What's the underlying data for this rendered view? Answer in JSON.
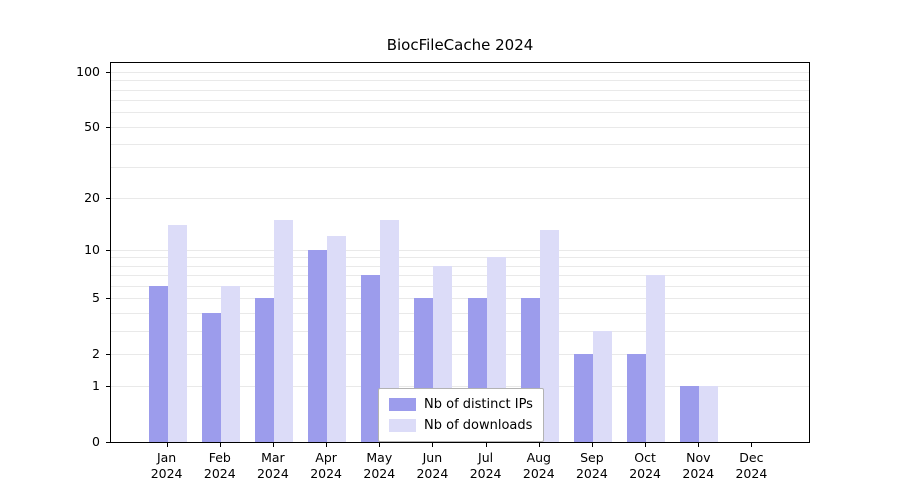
{
  "chart_data": {
    "type": "bar",
    "title": "BiocFileCache 2024",
    "year": "2024",
    "months": [
      "Jan",
      "Feb",
      "Mar",
      "Apr",
      "May",
      "Jun",
      "Jul",
      "Aug",
      "Sep",
      "Oct",
      "Nov",
      "Dec"
    ],
    "series": [
      {
        "name": "Nb of distinct IPs",
        "color": "#9c9cec",
        "values": [
          6,
          4,
          5,
          10,
          7,
          5,
          5,
          5,
          2,
          2,
          1,
          0
        ]
      },
      {
        "name": "Nb of downloads",
        "color": "#dcdcf8",
        "values": [
          14,
          6,
          15,
          12,
          15,
          8,
          9,
          13,
          3,
          7,
          1,
          0
        ]
      }
    ],
    "y_scale": "log1p",
    "y_max": 100,
    "y_ticks": [
      0,
      1,
      2,
      5,
      10,
      20,
      50,
      100
    ],
    "gridlines": [
      1,
      2,
      3,
      4,
      5,
      6,
      7,
      8,
      9,
      10,
      20,
      30,
      40,
      50,
      60,
      70,
      80,
      90,
      100
    ],
    "grid": true,
    "legend_position": "bottom-center",
    "xlabel": "",
    "ylabel": ""
  }
}
